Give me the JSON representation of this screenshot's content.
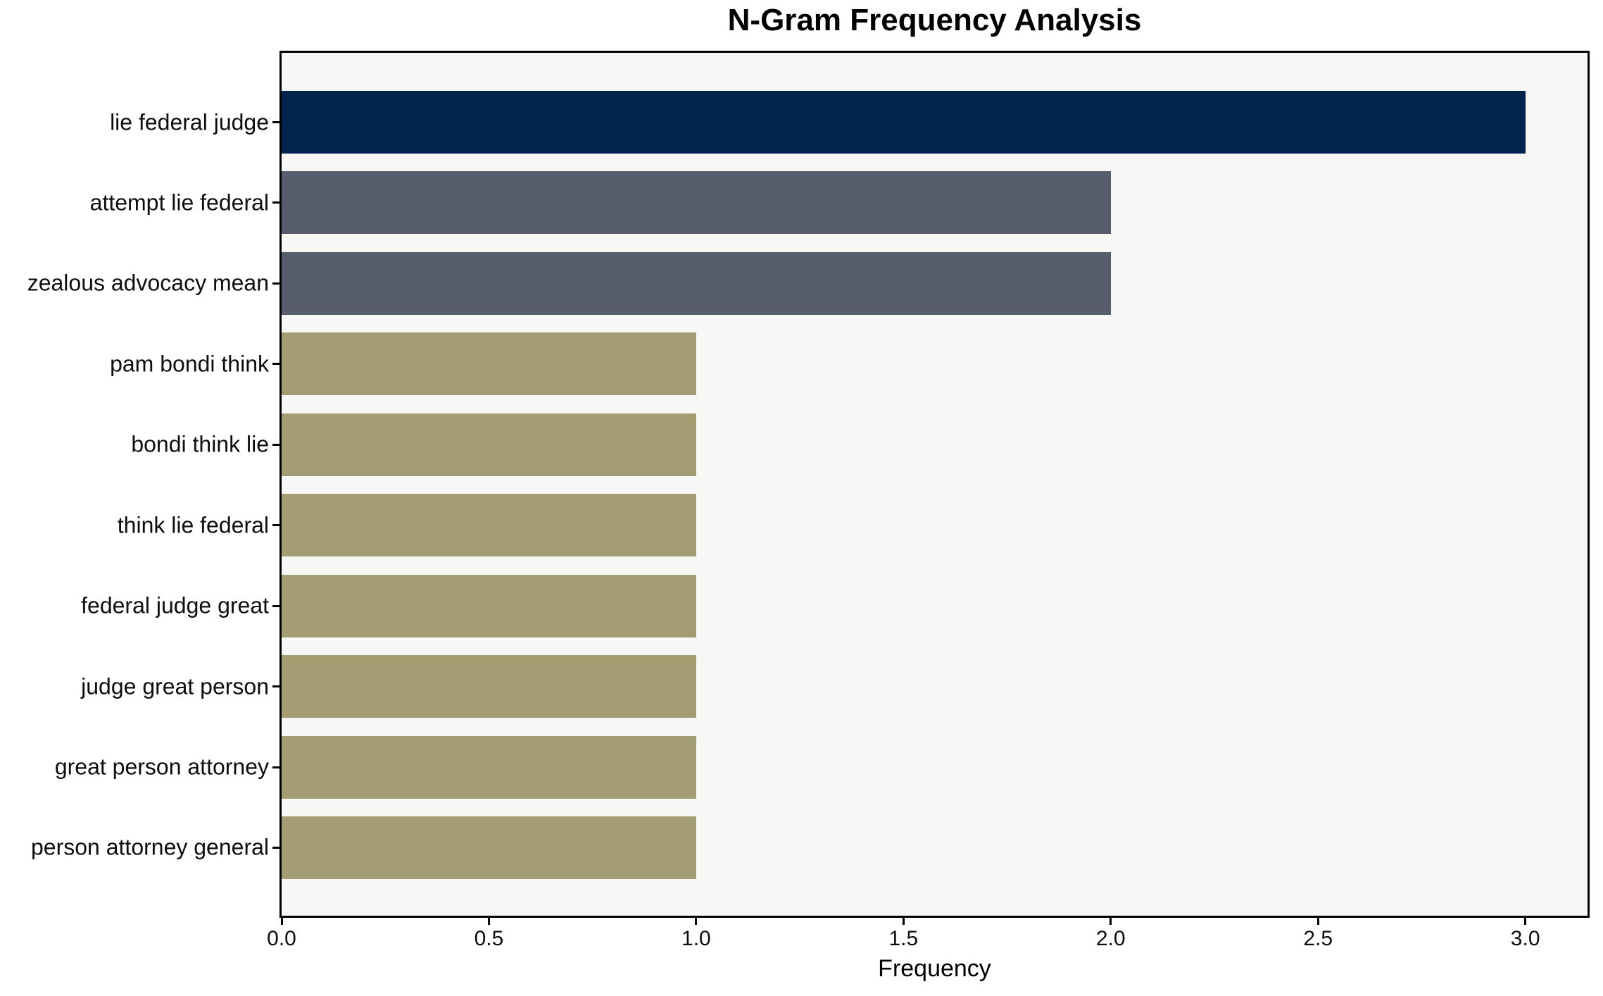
{
  "chart_data": {
    "type": "bar",
    "orientation": "horizontal",
    "title": "N-Gram Frequency Analysis",
    "xlabel": "Frequency",
    "ylabel": "",
    "categories": [
      "lie federal judge",
      "attempt lie federal",
      "zealous advocacy mean",
      "pam bondi think",
      "bondi think lie",
      "think lie federal",
      "federal judge great",
      "judge great person",
      "great person attorney",
      "person attorney general"
    ],
    "values": [
      3,
      2,
      2,
      1,
      1,
      1,
      1,
      1,
      1,
      1
    ],
    "bar_colors": [
      "#02234d",
      "#575d6d",
      "#575d6d",
      "#a49c72",
      "#a49c72",
      "#a49c72",
      "#a49c72",
      "#a49c72",
      "#a49c72",
      "#a49c72"
    ],
    "xlim": [
      0,
      3.15
    ],
    "xticks": [
      0.0,
      0.5,
      1.0,
      1.5,
      2.0,
      2.5,
      3.0
    ],
    "xtick_labels": [
      "0.0",
      "0.5",
      "1.0",
      "1.5",
      "2.0",
      "2.5",
      "3.0"
    ],
    "grid": false,
    "legend": null,
    "colors": {
      "plot_background": "#f7f7f6",
      "figure_background": "#ffffff",
      "spine": "#000000",
      "text": "#0e0e0e"
    }
  }
}
